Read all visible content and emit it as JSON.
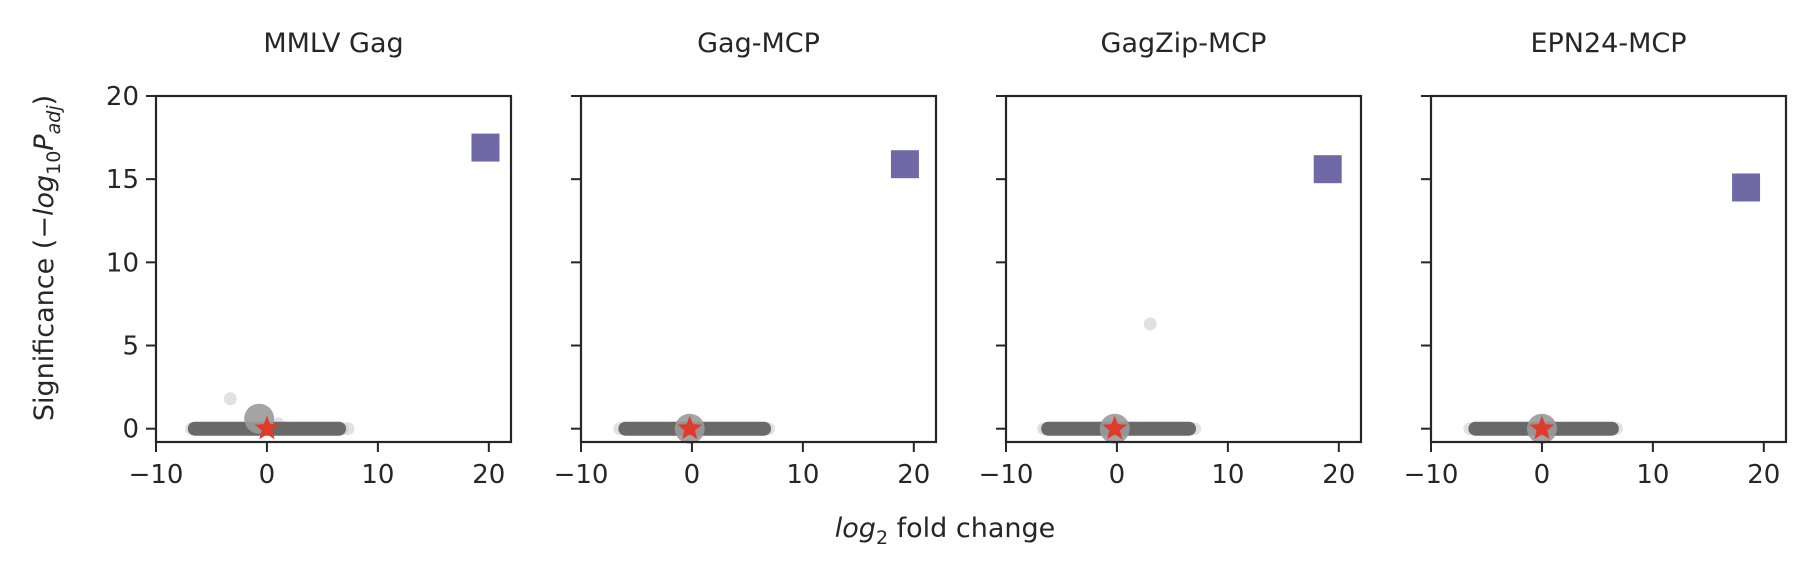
{
  "figure": {
    "ylabel": {
      "main": "Significance (−",
      "log": "log",
      "sub10": "10",
      "p": "P",
      "adj": "adj",
      "close": ")"
    },
    "xlabel": {
      "log": "log",
      "sub2": "2",
      "rest": " fold change"
    }
  },
  "chart_data": [
    {
      "type": "scatter",
      "title": "MMLV Gag",
      "xlim": [
        -10,
        22
      ],
      "ylim": [
        -0.8,
        20
      ],
      "xticks": [
        -10,
        0,
        10,
        20
      ],
      "yticks": [
        0,
        5,
        10,
        15,
        20
      ],
      "xtick_labels": [
        "−10",
        "0",
        "10",
        "20"
      ],
      "ytick_labels": [
        "0",
        "5",
        "10",
        "15",
        "20"
      ],
      "background_band": {
        "x_from": -6.5,
        "x_to": 6.5,
        "y": 0
      },
      "light_points": [
        [
          -6.8,
          0
        ],
        [
          -6.3,
          0
        ],
        [
          -3.3,
          1.8
        ],
        [
          6.8,
          0
        ],
        [
          7.3,
          0
        ],
        [
          1,
          0.3
        ]
      ],
      "big_gray_point": {
        "x": -0.7,
        "y": 0.6
      },
      "star_point": {
        "x": 0,
        "y": 0
      },
      "square_point": {
        "x": 19.7,
        "y": 16.9
      }
    },
    {
      "type": "scatter",
      "title": "Gag-MCP",
      "xlim": [
        -10,
        22
      ],
      "ylim": [
        -0.8,
        20
      ],
      "xticks": [
        -10,
        0,
        10,
        20
      ],
      "yticks": [
        0,
        5,
        10,
        15,
        20
      ],
      "xtick_labels": [
        "−10",
        "0",
        "10",
        "20"
      ],
      "ytick_labels": [
        "",
        "",
        "",
        "",
        ""
      ],
      "background_band": {
        "x_from": -6,
        "x_to": 6.5,
        "y": 0
      },
      "light_points": [
        [
          -6.5,
          0
        ],
        [
          6.9,
          0
        ]
      ],
      "big_gray_point": {
        "x": -0.2,
        "y": 0
      },
      "star_point": {
        "x": -0.2,
        "y": 0
      },
      "square_point": {
        "x": 19.2,
        "y": 15.9
      }
    },
    {
      "type": "scatter",
      "title": "GagZip-MCP",
      "xlim": [
        -10,
        22
      ],
      "ylim": [
        -0.8,
        20
      ],
      "xticks": [
        -10,
        0,
        10,
        20
      ],
      "yticks": [
        0,
        5,
        10,
        15,
        20
      ],
      "xtick_labels": [
        "−10",
        "0",
        "10",
        "20"
      ],
      "ytick_labels": [
        "",
        "",
        "",
        "",
        ""
      ],
      "background_band": {
        "x_from": -6.2,
        "x_to": 6.5,
        "y": 0
      },
      "light_points": [
        [
          3,
          6.3
        ],
        [
          -6.6,
          0
        ],
        [
          7,
          0
        ]
      ],
      "big_gray_point": {
        "x": -0.2,
        "y": 0
      },
      "star_point": {
        "x": -0.2,
        "y": 0
      },
      "square_point": {
        "x": 19,
        "y": 15.6
      }
    },
    {
      "type": "scatter",
      "title": "EPN24-MCP",
      "xlim": [
        -10,
        22
      ],
      "ylim": [
        -0.8,
        20
      ],
      "xticks": [
        -10,
        0,
        10,
        20
      ],
      "yticks": [
        0,
        5,
        10,
        15,
        20
      ],
      "xtick_labels": [
        "−10",
        "0",
        "10",
        "20"
      ],
      "ytick_labels": [
        "",
        "",
        "",
        "",
        ""
      ],
      "background_band": {
        "x_from": -6,
        "x_to": 6.3,
        "y": 0
      },
      "light_points": [
        [
          -6.5,
          0
        ],
        [
          6.7,
          0
        ]
      ],
      "big_gray_point": {
        "x": 0,
        "y": 0
      },
      "star_point": {
        "x": 0,
        "y": 0
      },
      "square_point": {
        "x": 18.4,
        "y": 14.5
      }
    }
  ],
  "colors": {
    "band": "#696969",
    "light_point": "#c8c8c8",
    "big_gray": "#9a9a9a",
    "star": "#e03a2a",
    "square": "#6f6aa6",
    "axis": "#262626"
  }
}
